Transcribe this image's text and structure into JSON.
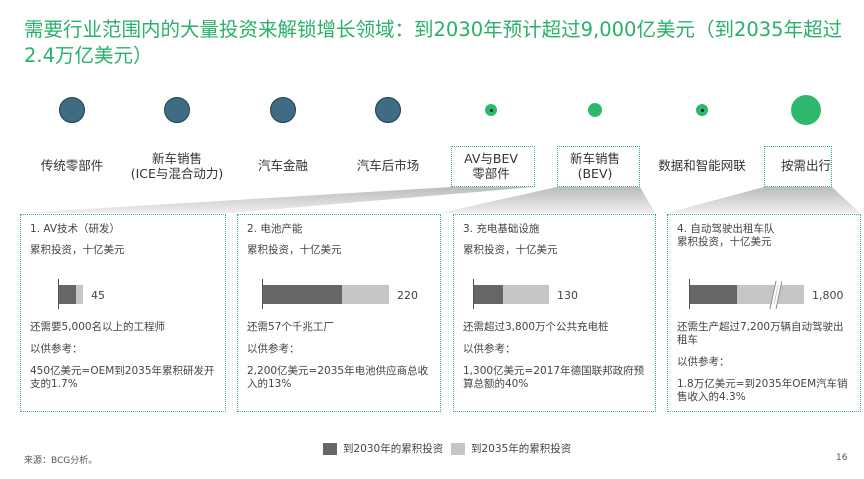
{
  "title": "需要行业范围内的大量投资来解锁增长领域：到2030年预计超过9,000亿美元（到2035年超过2.4万亿美元）",
  "colors": {
    "title": "#29b06a",
    "existing": "#3e6c82",
    "growth": "#2db86e",
    "bar_2030": "#666666",
    "bar_2035": "#c6c6c6"
  },
  "segments": [
    {
      "label": "传统零部件",
      "type": "existing"
    },
    {
      "label": "新车销售\n(ICE与混合动力)",
      "type": "existing"
    },
    {
      "label": "汽车金融",
      "type": "existing"
    },
    {
      "label": "汽车后市场",
      "type": "existing"
    },
    {
      "label": "AV与BEV\n零部件",
      "type": "growth"
    },
    {
      "label": "新车销售\n(BEV)",
      "type": "growth"
    },
    {
      "label": "数据和智能网联",
      "type": "growth"
    },
    {
      "label": "按需出行",
      "type": "growth"
    }
  ],
  "panels": [
    {
      "title": "1. AV技术（研发）",
      "unit": "累积投资，十亿美元",
      "value": "45",
      "share_2030": 0.7,
      "need": "还需要5,000名以上的工程师",
      "ref_label": "以供参考：",
      "ref": "450亿美元=OEM到2035年累积研发开支的1.7%"
    },
    {
      "title": "2. 电池产能",
      "unit": "累积投资，十亿美元",
      "value": "220",
      "share_2030": 0.63,
      "need": "还需57个千兆工厂",
      "ref_label": "以供参考：",
      "ref": "2,200亿美元=2035年电池供应商总收入的13%"
    },
    {
      "title": "3. 充电基础设施",
      "unit": "累积投资，十亿美元",
      "value": "130",
      "share_2030": 0.39,
      "need": "还需超过3,800万个公共充电桩",
      "ref_label": "以供参考：",
      "ref": "1,300亿美元=2017年德国联邦政府预算总额的40%"
    },
    {
      "title": "4. 自动驾驶出租车队",
      "unit": "累积投资，十亿美元",
      "value": "1,800",
      "axis_break": true,
      "need": "还需生产超过7,200万辆自动驾驶出租车",
      "ref_label": "以供参考：",
      "ref": "1.8万亿美元=到2035年OEM汽车销售收入的4.3%"
    }
  ],
  "legend": {
    "s2030": "到2030年的累积投资",
    "s2035": "到2035年的累积投资"
  },
  "footer": {
    "source": "来源：BCG分析。",
    "page": "16"
  }
}
